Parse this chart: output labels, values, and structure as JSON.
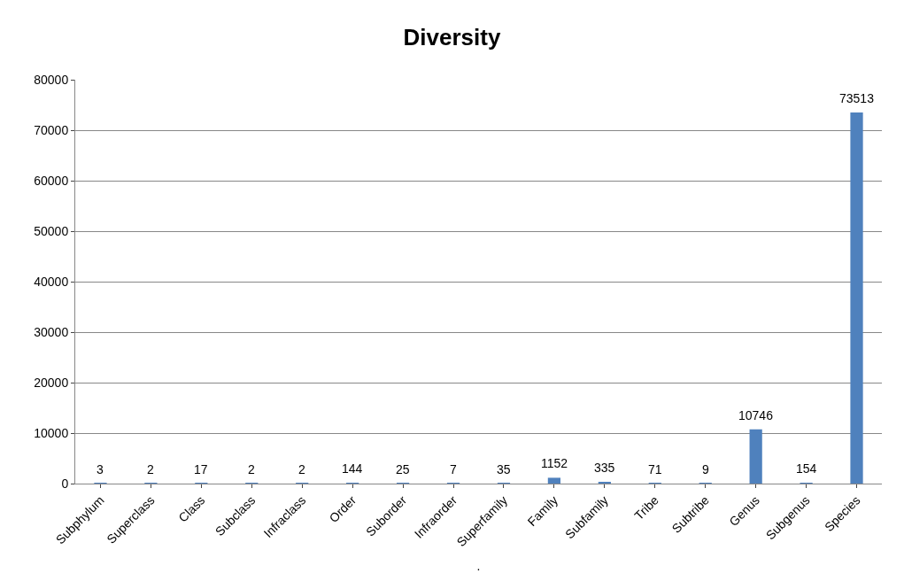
{
  "chart_data": {
    "type": "bar",
    "title": "Diversity",
    "xlabel": ".",
    "categories": [
      "Subphylum",
      "Superclass",
      "Class",
      "Subclass",
      "Infraclass",
      "Order",
      "Suborder",
      "Infraorder",
      "Superfamily",
      "Family",
      "Subfamily",
      "Tribe",
      "Subtribe",
      "Genus",
      "Subgenus",
      "Species"
    ],
    "values": [
      3,
      2,
      17,
      2,
      2,
      144,
      25,
      7,
      35,
      1152,
      335,
      71,
      9,
      10746,
      154,
      73513
    ],
    "color": "#4f81bd",
    "ylim": [
      0,
      80000
    ],
    "yticks": [
      0,
      10000,
      20000,
      30000,
      40000,
      50000,
      60000,
      70000,
      80000
    ],
    "grid": "y",
    "data_labels": true
  }
}
